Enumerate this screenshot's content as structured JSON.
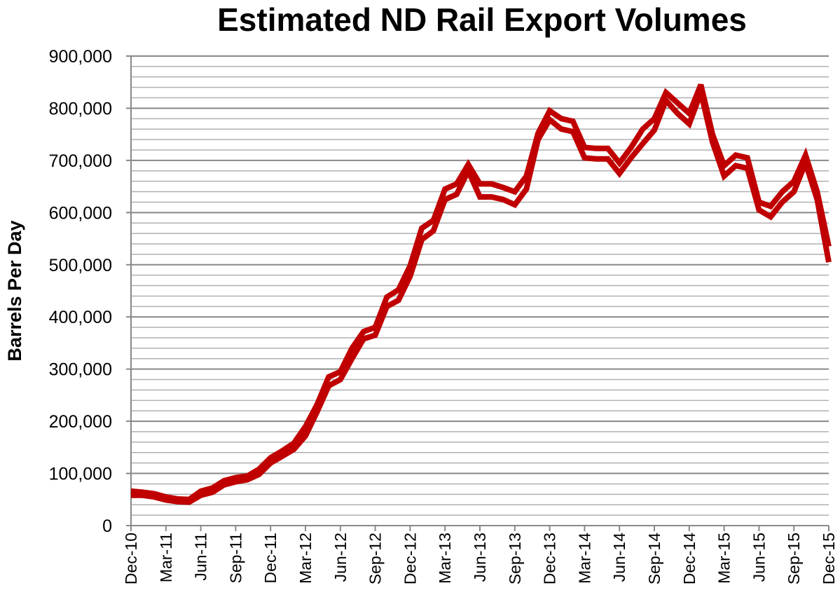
{
  "chart_data": {
    "type": "line",
    "title": "Estimated ND Rail Export Volumes",
    "xlabel": "",
    "ylabel": "Barrels Per Day",
    "ylim": [
      0,
      900000
    ],
    "y_major_step": 100000,
    "y_minor_step": 20000,
    "grid": true,
    "legend": "none",
    "line_color": "#c00000",
    "yticks": [
      "0",
      "100,000",
      "200,000",
      "300,000",
      "400,000",
      "500,000",
      "600,000",
      "700,000",
      "800,000",
      "900,000"
    ],
    "xtick_labels": [
      "Dec-10",
      "Mar-11",
      "Jun-11",
      "Sep-11",
      "Dec-11",
      "Mar-12",
      "Jun-12",
      "Sep-12",
      "Dec-12",
      "Mar-13",
      "Jun-13",
      "Sep-13",
      "Dec-13",
      "Mar-14",
      "Jun-14",
      "Sep-14",
      "Dec-14",
      "Mar-15",
      "Jun-15",
      "Sep-15",
      "Dec-15"
    ],
    "x": [
      "Dec-10",
      "Jan-11",
      "Feb-11",
      "Mar-11",
      "Apr-11",
      "May-11",
      "Jun-11",
      "Jul-11",
      "Aug-11",
      "Sep-11",
      "Oct-11",
      "Nov-11",
      "Dec-11",
      "Jan-12",
      "Feb-12",
      "Mar-12",
      "Apr-12",
      "May-12",
      "Jun-12",
      "Jul-12",
      "Aug-12",
      "Sep-12",
      "Oct-12",
      "Nov-12",
      "Dec-12",
      "Jan-13",
      "Feb-13",
      "Mar-13",
      "Apr-13",
      "May-13",
      "Jun-13",
      "Jul-13",
      "Aug-13",
      "Sep-13",
      "Oct-13",
      "Nov-13",
      "Dec-13",
      "Jan-14",
      "Feb-14",
      "Mar-14",
      "Apr-14",
      "May-14",
      "Jun-14",
      "Jul-14",
      "Aug-14",
      "Sep-14",
      "Oct-14",
      "Nov-14",
      "Dec-14",
      "Jan-15",
      "Feb-15",
      "Mar-15",
      "Apr-15",
      "May-15",
      "Jun-15",
      "Jul-15",
      "Aug-15",
      "Sep-15",
      "Oct-15",
      "Nov-15",
      "Dec-15"
    ],
    "series": [
      {
        "name": "",
        "values": [
          66000,
          64000,
          61000,
          55000,
          51000,
          50000,
          66000,
          72000,
          86000,
          92000,
          95000,
          108000,
          130000,
          143000,
          158000,
          190000,
          232000,
          285000,
          295000,
          340000,
          372000,
          380000,
          438000,
          452000,
          498000,
          570000,
          585000,
          645000,
          655000,
          692000,
          655000,
          655000,
          648000,
          640000,
          670000,
          752000,
          795000,
          780000,
          775000,
          725000,
          723000,
          723000,
          695000,
          725000,
          760000,
          780000,
          830000,
          810000,
          790000,
          845000,
          750000,
          690000,
          710000,
          705000,
          620000,
          612000,
          640000,
          660000,
          710000,
          640000,
          535000
        ]
      },
      {
        "name": "",
        "values": [
          58000,
          58000,
          55000,
          49000,
          46000,
          45000,
          58000,
          64000,
          78000,
          84000,
          88000,
          98000,
          120000,
          133000,
          146000,
          172000,
          218000,
          268000,
          280000,
          320000,
          358000,
          365000,
          420000,
          432000,
          478000,
          548000,
          565000,
          625000,
          635000,
          680000,
          630000,
          630000,
          625000,
          615000,
          645000,
          740000,
          778000,
          760000,
          755000,
          705000,
          703000,
          703000,
          675000,
          705000,
          732000,
          758000,
          815000,
          790000,
          770000,
          830000,
          735000,
          670000,
          690000,
          685000,
          605000,
          592000,
          620000,
          640000,
          695000,
          625000,
          505000
        ]
      }
    ]
  }
}
